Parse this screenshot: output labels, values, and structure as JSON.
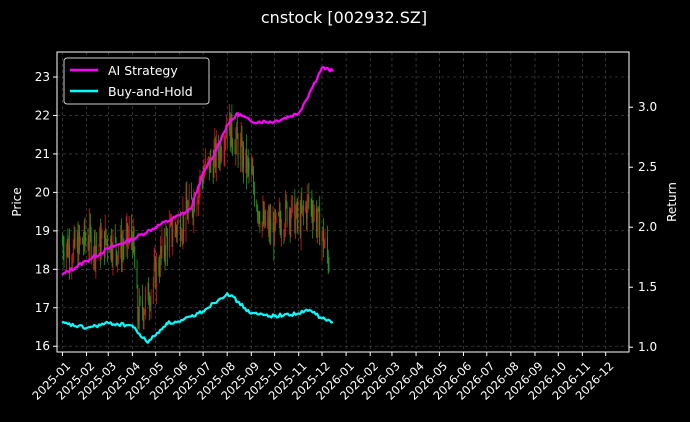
{
  "chart_data": {
    "type": "line",
    "title": "cnstock [002932.SZ]",
    "ylabel_left": "Price",
    "ylabel_right": "Return",
    "xlim": [
      "2024-12-25",
      "2026-12-31"
    ],
    "ylim_left": [
      15.85,
      23.65
    ],
    "ylim_right": [
      0.96,
      3.46
    ],
    "grid": true,
    "legend_position": "upper-left",
    "x_ticks": [
      "2025-01",
      "2025-02",
      "2025-03",
      "2025-04",
      "2025-05",
      "2025-06",
      "2025-07",
      "2025-08",
      "2025-09",
      "2025-10",
      "2025-11",
      "2025-12",
      "2026-01",
      "2026-02",
      "2026-03",
      "2026-04",
      "2026-05",
      "2026-06",
      "2026-07",
      "2026-08",
      "2026-09",
      "2026-10",
      "2026-11",
      "2026-12"
    ],
    "y_ticks_left": [
      16,
      17,
      18,
      19,
      20,
      21,
      22,
      23
    ],
    "y_ticks_right": [
      1.0,
      1.5,
      2.0,
      2.5,
      3.0
    ],
    "candle_colors": {
      "up": "#d11a1a",
      "down": "#1a9e1a"
    },
    "price_anchors": [
      {
        "x": "2025-01-01",
        "y": 18.7
      },
      {
        "x": "2025-01-15",
        "y": 18.5
      },
      {
        "x": "2025-02-01",
        "y": 18.8
      },
      {
        "x": "2025-02-15",
        "y": 18.6
      },
      {
        "x": "2025-03-01",
        "y": 18.8
      },
      {
        "x": "2025-03-15",
        "y": 18.5
      },
      {
        "x": "2025-04-01",
        "y": 18.9
      },
      {
        "x": "2025-04-08",
        "y": 16.8
      },
      {
        "x": "2025-04-20",
        "y": 17.2
      },
      {
        "x": "2025-05-01",
        "y": 17.9
      },
      {
        "x": "2025-05-15",
        "y": 18.8
      },
      {
        "x": "2025-06-01",
        "y": 19.2
      },
      {
        "x": "2025-06-15",
        "y": 19.6
      },
      {
        "x": "2025-07-01",
        "y": 20.5
      },
      {
        "x": "2025-07-20",
        "y": 21.0
      },
      {
        "x": "2025-08-01",
        "y": 21.8
      },
      {
        "x": "2025-08-15",
        "y": 21.2
      },
      {
        "x": "2025-09-01",
        "y": 20.4
      },
      {
        "x": "2025-09-15",
        "y": 19.2
      },
      {
        "x": "2025-10-01",
        "y": 19.0
      },
      {
        "x": "2025-10-20",
        "y": 19.6
      },
      {
        "x": "2025-11-01",
        "y": 19.2
      },
      {
        "x": "2025-11-15",
        "y": 19.8
      },
      {
        "x": "2025-12-01",
        "y": 18.9
      },
      {
        "x": "2025-12-10",
        "y": 18.2
      }
    ],
    "series": [
      {
        "name": "AI Strategy",
        "color": "#ff00ff",
        "axis": "right",
        "points": [
          {
            "x": "2025-01-01",
            "y": 1.6
          },
          {
            "x": "2025-02-01",
            "y": 1.72
          },
          {
            "x": "2025-03-01",
            "y": 1.82
          },
          {
            "x": "2025-04-01",
            "y": 1.9
          },
          {
            "x": "2025-05-01",
            "y": 2.0
          },
          {
            "x": "2025-06-01",
            "y": 2.1
          },
          {
            "x": "2025-06-15",
            "y": 2.15
          },
          {
            "x": "2025-07-01",
            "y": 2.45
          },
          {
            "x": "2025-07-15",
            "y": 2.6
          },
          {
            "x": "2025-08-01",
            "y": 2.85
          },
          {
            "x": "2025-08-15",
            "y": 2.95
          },
          {
            "x": "2025-09-01",
            "y": 2.88
          },
          {
            "x": "2025-10-01",
            "y": 2.88
          },
          {
            "x": "2025-11-01",
            "y": 2.95
          },
          {
            "x": "2025-11-15",
            "y": 3.12
          },
          {
            "x": "2025-12-01",
            "y": 3.33
          },
          {
            "x": "2025-12-15",
            "y": 3.3
          }
        ]
      },
      {
        "name": "Buy-and-Hold",
        "color": "#00ffff",
        "axis": "right",
        "points": [
          {
            "x": "2025-01-01",
            "y": 1.2
          },
          {
            "x": "2025-02-01",
            "y": 1.16
          },
          {
            "x": "2025-03-01",
            "y": 1.2
          },
          {
            "x": "2025-04-01",
            "y": 1.18
          },
          {
            "x": "2025-04-20",
            "y": 1.04
          },
          {
            "x": "2025-05-01",
            "y": 1.1
          },
          {
            "x": "2025-05-15",
            "y": 1.2
          },
          {
            "x": "2025-06-01",
            "y": 1.21
          },
          {
            "x": "2025-07-01",
            "y": 1.3
          },
          {
            "x": "2025-08-01",
            "y": 1.45
          },
          {
            "x": "2025-08-15",
            "y": 1.38
          },
          {
            "x": "2025-09-01",
            "y": 1.28
          },
          {
            "x": "2025-10-01",
            "y": 1.26
          },
          {
            "x": "2025-11-01",
            "y": 1.28
          },
          {
            "x": "2025-11-15",
            "y": 1.31
          },
          {
            "x": "2025-12-01",
            "y": 1.24
          },
          {
            "x": "2025-12-15",
            "y": 1.21
          }
        ]
      }
    ]
  }
}
